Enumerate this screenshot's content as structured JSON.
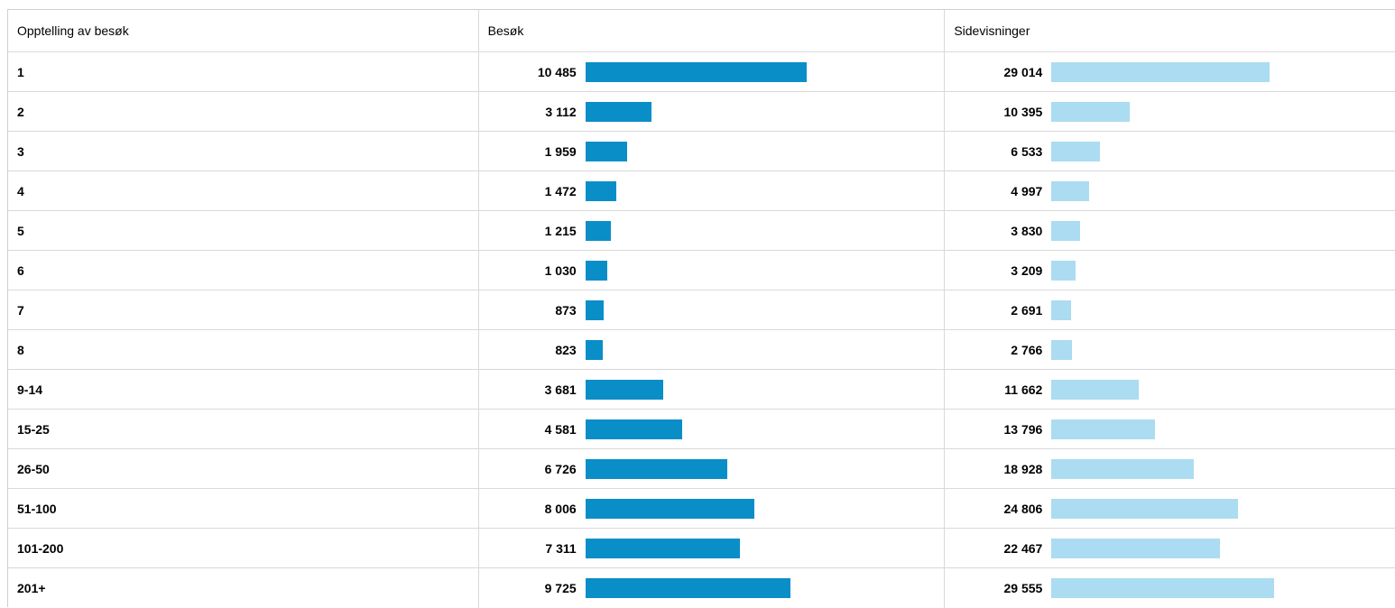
{
  "columns": {
    "count": "Opptelling av besøk",
    "visits": "Besøk",
    "pageviews": "Sidevisninger"
  },
  "colors": {
    "visits_bar": "#0a8ec8",
    "pageviews_bar": "#abdcf1"
  },
  "rows": [
    {
      "label": "1",
      "visits": "10 485",
      "visits_value": 10485,
      "pageviews": "29 014",
      "pageviews_value": 29014
    },
    {
      "label": "2",
      "visits": "3 112",
      "visits_value": 3112,
      "pageviews": "10 395",
      "pageviews_value": 10395
    },
    {
      "label": "3",
      "visits": "1 959",
      "visits_value": 1959,
      "pageviews": "6 533",
      "pageviews_value": 6533
    },
    {
      "label": "4",
      "visits": "1 472",
      "visits_value": 1472,
      "pageviews": "4 997",
      "pageviews_value": 4997
    },
    {
      "label": "5",
      "visits": "1 215",
      "visits_value": 1215,
      "pageviews": "3 830",
      "pageviews_value": 3830
    },
    {
      "label": "6",
      "visits": "1 030",
      "visits_value": 1030,
      "pageviews": "3 209",
      "pageviews_value": 3209
    },
    {
      "label": "7",
      "visits": "873",
      "visits_value": 873,
      "pageviews": "2 691",
      "pageviews_value": 2691
    },
    {
      "label": "8",
      "visits": "823",
      "visits_value": 823,
      "pageviews": "2 766",
      "pageviews_value": 2766
    },
    {
      "label": "9-14",
      "visits": "3 681",
      "visits_value": 3681,
      "pageviews": "11 662",
      "pageviews_value": 11662
    },
    {
      "label": "15-25",
      "visits": "4 581",
      "visits_value": 4581,
      "pageviews": "13 796",
      "pageviews_value": 13796
    },
    {
      "label": "26-50",
      "visits": "6 726",
      "visits_value": 6726,
      "pageviews": "18 928",
      "pageviews_value": 18928
    },
    {
      "label": "51-100",
      "visits": "8 006",
      "visits_value": 8006,
      "pageviews": "24 806",
      "pageviews_value": 24806
    },
    {
      "label": "101-200",
      "visits": "7 311",
      "visits_value": 7311,
      "pageviews": "22 467",
      "pageviews_value": 22467
    },
    {
      "label": "201+",
      "visits": "9 725",
      "visits_value": 9725,
      "pageviews": "29 555",
      "pageviews_value": 29555
    }
  ]
}
